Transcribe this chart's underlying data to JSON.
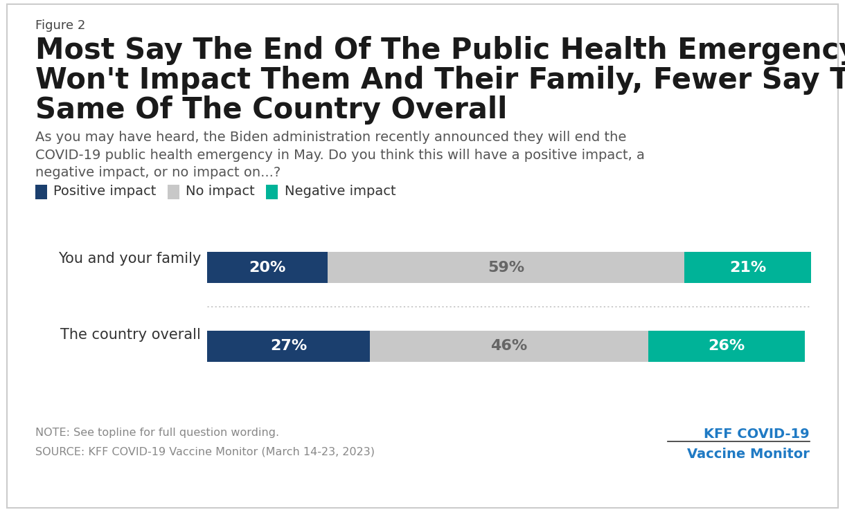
{
  "figure_label": "Figure 2",
  "title_line1": "Most Say The End Of The Public Health Emergency",
  "title_line2": "Won't Impact Them And Their Family, Fewer Say The",
  "title_line3": "Same Of The Country Overall",
  "subtitle_line1": "As you may have heard, the Biden administration recently announced they will end the",
  "subtitle_line2": "COVID-19 public health emergency in May. Do you think this will have a positive impact, a",
  "subtitle_line3": "negative impact, or no impact on...?",
  "categories": [
    "You and your family",
    "The country overall"
  ],
  "positive": [
    20,
    27
  ],
  "no_impact": [
    59,
    46
  ],
  "negative": [
    21,
    26
  ],
  "positive_color": "#1b3f6e",
  "no_impact_color": "#c8c8c8",
  "negative_color": "#00b398",
  "legend_labels": [
    "Positive impact",
    "No impact",
    "Negative impact"
  ],
  "note": "NOTE: See topline for full question wording.",
  "source": "SOURCE: KFF COVID-19 Vaccine Monitor (March 14-23, 2023)",
  "kff_line1": "KFF COVID-19",
  "kff_line2": "Vaccine Monitor",
  "kff_color": "#1f7ac4",
  "background_color": "#ffffff",
  "bar_label_color_white": "#ffffff",
  "bar_label_color_dark": "#666666",
  "title_fontsize": 30,
  "subtitle_fontsize": 14,
  "figure_label_fontsize": 13,
  "legend_fontsize": 14,
  "note_fontsize": 11.5,
  "bar_label_fontsize": 16,
  "category_fontsize": 15
}
